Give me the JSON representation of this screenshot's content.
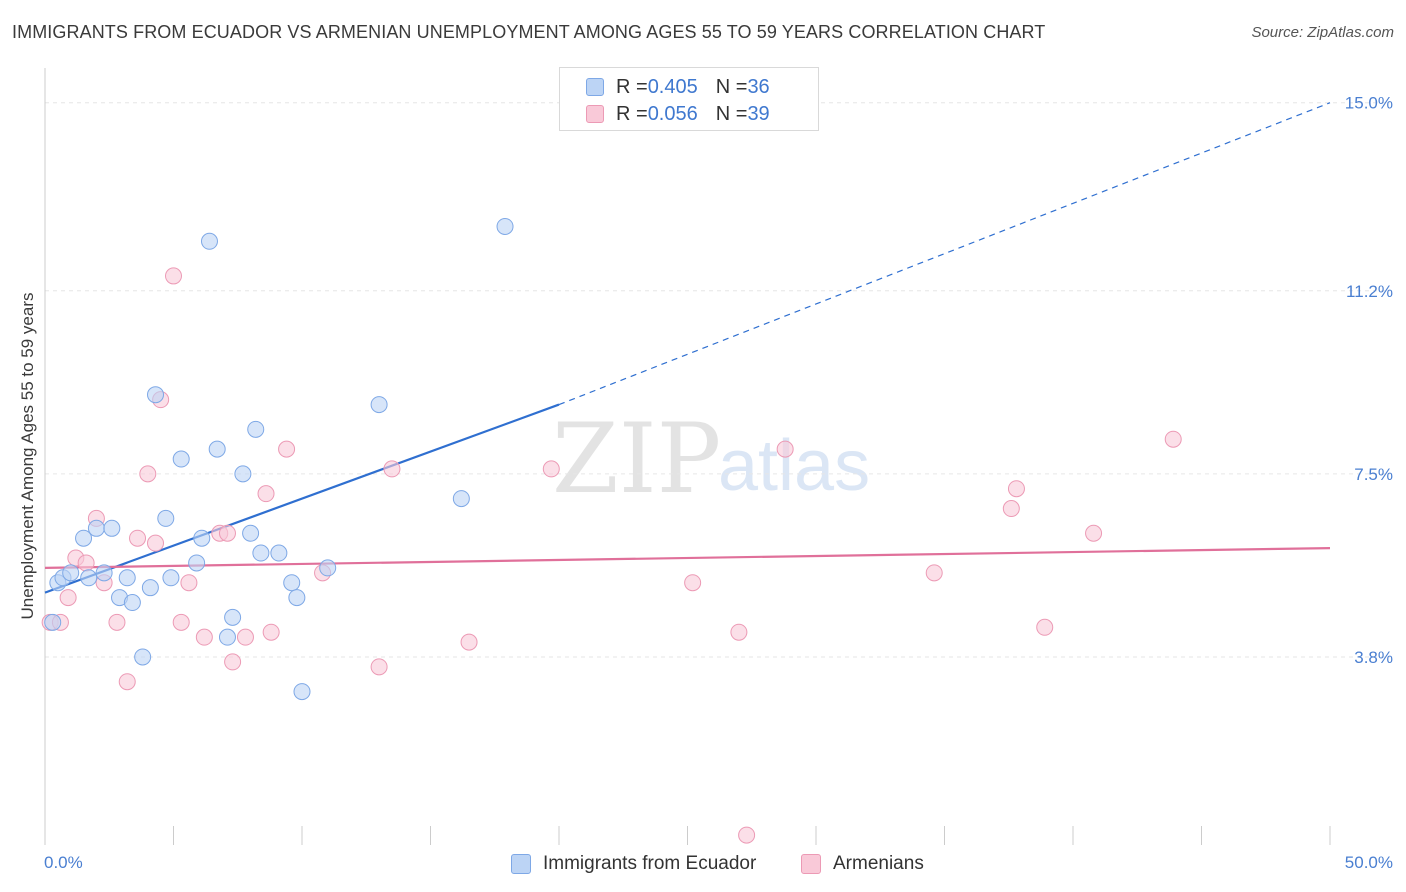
{
  "title": "IMMIGRANTS FROM ECUADOR VS ARMENIAN UNEMPLOYMENT AMONG AGES 55 TO 59 YEARS CORRELATION CHART",
  "source": "Source: ZipAtlas.com",
  "watermark": {
    "zip": "ZIP",
    "atlas": "atlas"
  },
  "legend": {
    "r_label": "R = ",
    "n_label": "N = ",
    "series": [
      {
        "name": "Immigrants from Ecuador",
        "r": "0.405",
        "n": "36",
        "fill": "#bcd4f5",
        "stroke": "#7ea8e6"
      },
      {
        "name": "Armenians",
        "r": "0.056",
        "n": "39",
        "fill": "#f9c9d8",
        "stroke": "#ec9ab5"
      }
    ]
  },
  "colors": {
    "blue_line": "#2f6fd0",
    "pink_line": "#e0709a",
    "grid": "#e6e6e6",
    "axis": "#cccccc"
  },
  "chart_data": {
    "type": "scatter",
    "title": "IMMIGRANTS FROM ECUADOR VS ARMENIAN UNEMPLOYMENT AMONG AGES 55 TO 59 YEARS CORRELATION CHART",
    "xlabel": "",
    "ylabel": "Unemployment Among Ages 55 to 59 years",
    "xlim": [
      0,
      50
    ],
    "ylim": [
      0,
      15.5
    ],
    "x_tick_labels": [
      "0.0%",
      "50.0%"
    ],
    "y_ticks": [
      3.8,
      7.5,
      11.2,
      15.0
    ],
    "y_tick_labels": [
      "3.8%",
      "7.5%",
      "11.2%",
      "15.0%"
    ],
    "series": [
      {
        "name": "Immigrants from Ecuador",
        "points": [
          [
            0.3,
            4.5
          ],
          [
            0.5,
            5.3
          ],
          [
            0.7,
            5.4
          ],
          [
            1.0,
            5.5
          ],
          [
            1.5,
            6.2
          ],
          [
            1.7,
            5.4
          ],
          [
            2.0,
            6.4
          ],
          [
            2.3,
            5.5
          ],
          [
            2.6,
            6.4
          ],
          [
            2.9,
            5.0
          ],
          [
            3.2,
            5.4
          ],
          [
            3.4,
            4.9
          ],
          [
            3.8,
            3.8
          ],
          [
            4.1,
            5.2
          ],
          [
            4.3,
            9.1
          ],
          [
            4.7,
            6.6
          ],
          [
            4.9,
            5.4
          ],
          [
            5.3,
            7.8
          ],
          [
            5.9,
            5.7
          ],
          [
            6.1,
            6.2
          ],
          [
            6.4,
            12.2
          ],
          [
            6.7,
            8.0
          ],
          [
            7.1,
            4.2
          ],
          [
            7.3,
            4.6
          ],
          [
            7.7,
            7.5
          ],
          [
            8.0,
            6.3
          ],
          [
            8.2,
            8.4
          ],
          [
            8.4,
            5.9
          ],
          [
            9.1,
            5.9
          ],
          [
            9.6,
            5.3
          ],
          [
            9.8,
            5.0
          ],
          [
            10.0,
            3.1
          ],
          [
            11.0,
            5.6
          ],
          [
            13.0,
            8.9
          ],
          [
            16.2,
            7.0
          ],
          [
            17.9,
            12.5
          ]
        ],
        "trend": {
          "x0": 0,
          "y0": 5.1,
          "x1": 20,
          "y1": 8.9,
          "dashed_to_x": 50,
          "dashed_to_y": 15.0
        }
      },
      {
        "name": "Armenians",
        "points": [
          [
            0.2,
            4.5
          ],
          [
            0.6,
            4.5
          ],
          [
            0.9,
            5.0
          ],
          [
            1.2,
            5.8
          ],
          [
            1.6,
            5.7
          ],
          [
            2.0,
            6.6
          ],
          [
            2.3,
            5.3
          ],
          [
            2.8,
            4.5
          ],
          [
            3.2,
            3.3
          ],
          [
            3.6,
            6.2
          ],
          [
            4.0,
            7.5
          ],
          [
            4.3,
            6.1
          ],
          [
            4.5,
            9.0
          ],
          [
            5.0,
            11.5
          ],
          [
            5.3,
            4.5
          ],
          [
            5.6,
            5.3
          ],
          [
            6.2,
            4.2
          ],
          [
            6.8,
            6.3
          ],
          [
            7.1,
            6.3
          ],
          [
            7.3,
            3.7
          ],
          [
            7.8,
            4.2
          ],
          [
            8.6,
            7.1
          ],
          [
            8.8,
            4.3
          ],
          [
            9.4,
            8.0
          ],
          [
            10.8,
            5.5
          ],
          [
            13.0,
            3.6
          ],
          [
            13.5,
            7.6
          ],
          [
            16.5,
            4.1
          ],
          [
            19.7,
            7.6
          ],
          [
            25.2,
            5.3
          ],
          [
            27.0,
            4.3
          ],
          [
            27.3,
            0.2
          ],
          [
            28.8,
            8.0
          ],
          [
            34.6,
            5.5
          ],
          [
            37.6,
            6.8
          ],
          [
            37.8,
            7.2
          ],
          [
            38.9,
            4.4
          ],
          [
            40.8,
            6.3
          ],
          [
            43.9,
            8.2
          ]
        ],
        "trend": {
          "x0": 0,
          "y0": 5.6,
          "x1": 50,
          "y1": 6.0
        }
      }
    ]
  }
}
